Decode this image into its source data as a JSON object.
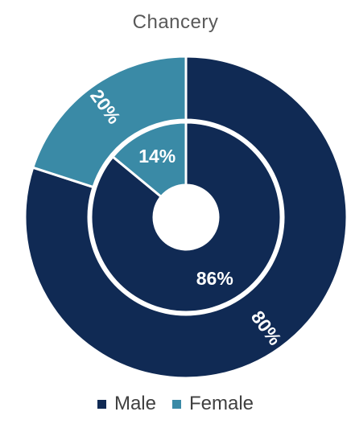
{
  "chart_data": {
    "type": "pie",
    "subtype": "nested-donut",
    "title": "Chancery",
    "categories": [
      "Male",
      "Female"
    ],
    "colors": {
      "Male": "#102a54",
      "Female": "#3a8aa6"
    },
    "rings": [
      {
        "ring": "outer",
        "values": [
          80,
          20
        ],
        "labels": [
          "80%",
          "20%"
        ]
      },
      {
        "ring": "inner",
        "values": [
          86,
          14
        ],
        "labels": [
          "86%",
          "14%"
        ]
      }
    ],
    "legend": {
      "position": "bottom",
      "entries": [
        "Male",
        "Female"
      ]
    }
  }
}
